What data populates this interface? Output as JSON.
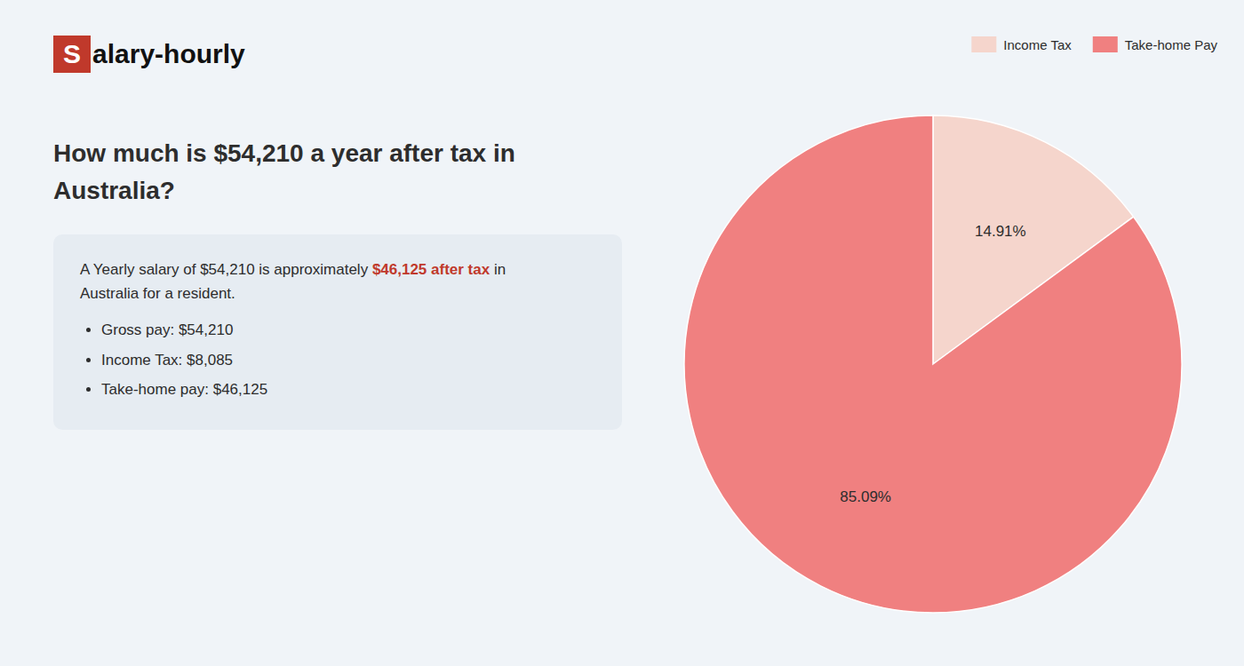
{
  "chart_data": {
    "type": "pie",
    "logo": [
      "S",
      "alary-hourly"
    ],
    "title": "How much is $54,210 a year after tax in Australia?",
    "subtitle": [
      "A Yearly salary of $54,210 is approximately ",
      "$46,125 after tax",
      " in",
      "Australia for a resident."
    ],
    "annotations": [
      "Gross pay: $54,210",
      "Income Tax: $8,085",
      "Take-home pay: $46,125"
    ],
    "categories": [
      "Income Tax",
      "Take-home Pay"
    ],
    "values": [
      14.91,
      85.09
    ],
    "value_labels": [
      "14.91%",
      "85.09%"
    ],
    "data_labels": true,
    "colors": [
      "#f5d5cc",
      "#f08080"
    ],
    "legend": "upper right"
  }
}
